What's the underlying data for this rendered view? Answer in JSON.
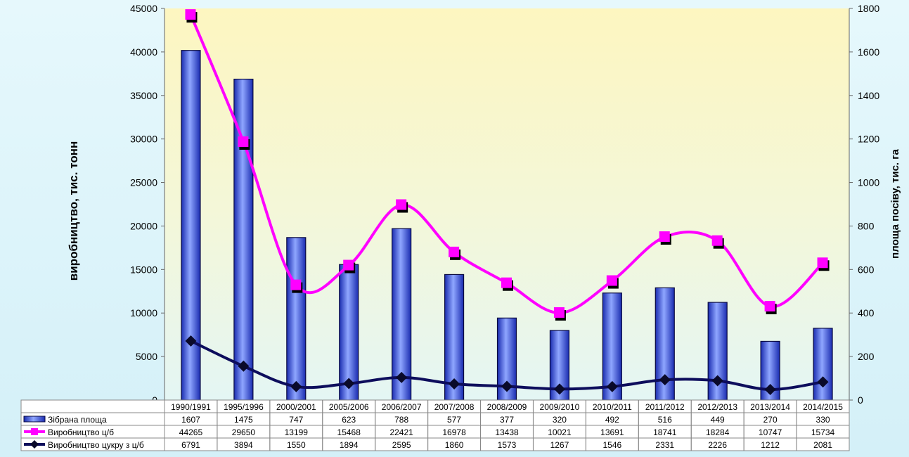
{
  "chart_data": {
    "type": "bar",
    "categories": [
      "1990/1991",
      "1995/1996",
      "2000/2001",
      "2005/2006",
      "2006/2007",
      "2007/2008",
      "2008/2009",
      "2009/2010",
      "2010/2011",
      "2011/2012",
      "2012/2013",
      "2013/2014",
      "2014/2015"
    ],
    "series": [
      {
        "name": "Зібрана площа",
        "type": "bar",
        "axis": "right",
        "values": [
          1607,
          1475,
          747,
          623,
          788,
          577,
          377,
          320,
          492,
          516,
          449,
          270,
          330
        ]
      },
      {
        "name": "Виробництво ц/б",
        "type": "line",
        "axis": "left",
        "values": [
          44265,
          29650,
          13199,
          15468,
          22421,
          16978,
          13438,
          10021,
          13691,
          18741,
          18284,
          10747,
          15734
        ]
      },
      {
        "name": "Виробництво цукру з ц/б",
        "type": "line",
        "axis": "left",
        "values": [
          6791,
          3894,
          1550,
          1894,
          2595,
          1860,
          1573,
          1267,
          1546,
          2331,
          2226,
          1212,
          2081
        ]
      }
    ],
    "ylabel": "виробництво, тис. тонн",
    "y2label": "площа посіву, тис. га",
    "ylim": [
      0,
      45000
    ],
    "y2lim": [
      0,
      1800
    ],
    "yticks": [
      "0",
      "5000",
      "10000",
      "15000",
      "20000",
      "25000",
      "30000",
      "35000",
      "40000",
      "45000"
    ],
    "y2ticks": [
      "0",
      "200",
      "400",
      "600",
      "800",
      "1000",
      "1200",
      "1400",
      "1600",
      "1800"
    ],
    "legend": "data-table-left",
    "colors": {
      "bar": "#2c44d8",
      "line1": "#ff00ff",
      "line2": "#0d0d5c",
      "plot_bg_top": "#fdf8c8",
      "page_bg": "#dcf4fb"
    }
  }
}
